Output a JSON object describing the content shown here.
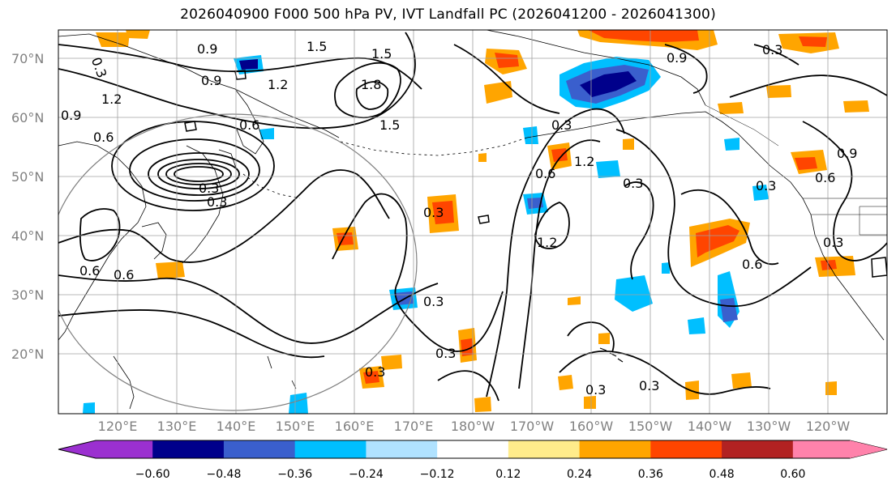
{
  "title": "2026040900 F000 500 hPa PV, IVT Landfall PC (2026041200 - 2026041300)",
  "latitude_labels": [
    "70°N",
    "60°N",
    "50°N",
    "40°N",
    "30°N",
    "20°N"
  ],
  "longitude_labels": [
    "120°E",
    "130°E",
    "140°E",
    "150°E",
    "160°E",
    "170°E",
    "180°W",
    "170°W",
    "160°W",
    "150°W",
    "140°W",
    "130°W",
    "120°W"
  ],
  "contour_labels": [
    "0.9",
    "1.5",
    "1.5",
    "0.3",
    "1.2",
    "1.8",
    "0.9",
    "0.3",
    "1.2",
    "0.9",
    "0.6",
    "1.5",
    "0.6",
    "0.9",
    "1.2",
    "0.6",
    "0.3",
    "0.3",
    "0.3",
    "0.6",
    "0.9",
    "0.3",
    "0.6",
    "0.3",
    "0.3",
    "0.6",
    "0.3",
    "0.3",
    "0.3",
    "0.3",
    "0.3",
    "1.2",
    "0.6",
    "0.3"
  ],
  "colorbar": {
    "colors": [
      "#9b30d0",
      "#00008b",
      "#3a5fcd",
      "#00bfff",
      "#b0e2ff",
      "#ffffff",
      "#ffec8b",
      "#ffa500",
      "#ff4500",
      "#b22222",
      "#ff82ab"
    ],
    "tick_labels": [
      "−0.60",
      "−0.48",
      "−0.36",
      "−0.24",
      "−0.12",
      "0.12",
      "0.24",
      "0.36",
      "0.48",
      "0.60"
    ]
  },
  "colors": {
    "gridline": "#a0a0a0",
    "coastline": "#000000",
    "contour": "#000000",
    "circle": "#808080",
    "axis_text": "#808080"
  }
}
